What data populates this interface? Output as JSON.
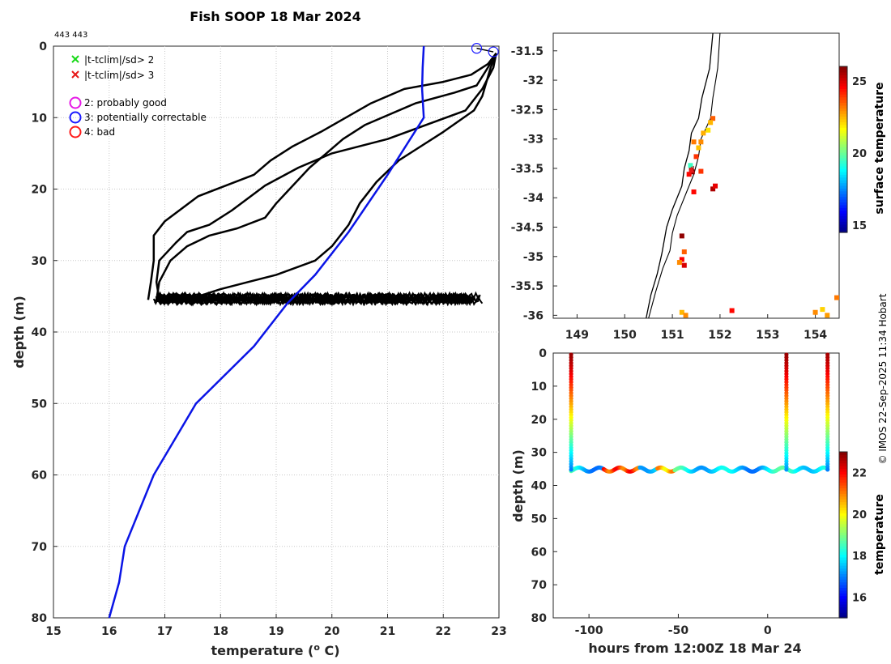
{
  "header_code": "443 443",
  "credit": "© IMOS 22-Sep-2025 11:34 Hobart",
  "colors": {
    "profile": "#000000",
    "climatology": "#0a14e6",
    "flag2": "#e619e6",
    "flag3": "#1a1aff",
    "flag4": "#ff1a1a",
    "xg": "#19d919",
    "xr": "#e61919"
  },
  "legend": {
    "x_green": "|t-tclim|/sd> 2",
    "x_red": "|t-tclim|/sd> 3",
    "flag2": "2: probably good",
    "flag3": "3: potentially correctable",
    "flag4": "4: bad"
  },
  "chart_data": [
    {
      "id": "profile",
      "type": "line",
      "title": "Fish SOOP 18 Mar 2024",
      "xlabel": "temperature (",
      "xlabel_sup": "o",
      "xlabel_end": " C)",
      "ylabel": "depth (m)",
      "xlim": [
        15,
        23
      ],
      "ylim": [
        0,
        80
      ],
      "xticks": [
        15,
        16,
        17,
        18,
        19,
        20,
        21,
        22,
        23
      ],
      "yticks": [
        0,
        10,
        20,
        30,
        40,
        50,
        60,
        70,
        80
      ],
      "grid": true,
      "climatology": {
        "name": "climatology",
        "points": [
          [
            21.65,
            0
          ],
          [
            21.63,
            3
          ],
          [
            21.62,
            6
          ],
          [
            21.65,
            10
          ],
          [
            21.0,
            18
          ],
          [
            20.3,
            26
          ],
          [
            19.7,
            32
          ],
          [
            19.2,
            36
          ],
          [
            18.6,
            42
          ],
          [
            17.56,
            50
          ],
          [
            16.8,
            60
          ],
          [
            16.28,
            70
          ],
          [
            16.18,
            75
          ],
          [
            16.0,
            80
          ]
        ]
      },
      "profiles": [
        {
          "name": "cast 1",
          "points": [
            [
              22.95,
              1
            ],
            [
              22.9,
              3
            ],
            [
              22.7,
              6
            ],
            [
              22.4,
              9
            ],
            [
              21.0,
              13
            ],
            [
              20.0,
              15
            ],
            [
              19.4,
              17
            ],
            [
              18.8,
              19.5
            ],
            [
              18.2,
              23
            ],
            [
              17.8,
              25
            ],
            [
              17.4,
              26
            ],
            [
              17.2,
              27.5
            ],
            [
              16.9,
              30
            ],
            [
              16.85,
              33
            ],
            [
              16.9,
              35.5
            ]
          ]
        },
        {
          "name": "cast 2",
          "points": [
            [
              22.95,
              1
            ],
            [
              22.8,
              2.5
            ],
            [
              22.5,
              4
            ],
            [
              22.0,
              5
            ],
            [
              21.3,
              6
            ],
            [
              20.7,
              8
            ],
            [
              19.8,
              12
            ],
            [
              19.3,
              14
            ],
            [
              18.9,
              16
            ],
            [
              18.6,
              18
            ],
            [
              18.1,
              19.5
            ],
            [
              17.6,
              21
            ],
            [
              17.0,
              24.5
            ],
            [
              16.8,
              26.5
            ],
            [
              16.8,
              30
            ],
            [
              16.75,
              33
            ],
            [
              16.7,
              35.5
            ]
          ]
        },
        {
          "name": "cast 3",
          "points": [
            [
              22.95,
              1
            ],
            [
              22.8,
              3
            ],
            [
              22.6,
              5.5
            ],
            [
              22.2,
              6.5
            ],
            [
              21.5,
              8
            ],
            [
              20.6,
              11
            ],
            [
              20.2,
              13
            ],
            [
              19.9,
              15
            ],
            [
              19.6,
              17
            ],
            [
              19.3,
              19.5
            ],
            [
              19.0,
              22
            ],
            [
              18.8,
              24
            ],
            [
              18.3,
              25.5
            ],
            [
              17.8,
              26.5
            ],
            [
              17.4,
              28
            ],
            [
              17.1,
              30
            ],
            [
              16.9,
              33
            ],
            [
              16.85,
              35.5
            ]
          ]
        },
        {
          "name": "cast 4",
          "points": [
            [
              22.95,
              1
            ],
            [
              22.85,
              3
            ],
            [
              22.7,
              7
            ],
            [
              22.55,
              9
            ],
            [
              22.0,
              12
            ],
            [
              21.2,
              16
            ],
            [
              20.8,
              19
            ],
            [
              20.5,
              22
            ],
            [
              20.3,
              25
            ],
            [
              20.0,
              28
            ],
            [
              19.7,
              30
            ],
            [
              19.0,
              32
            ],
            [
              18.5,
              33
            ],
            [
              18.0,
              34
            ],
            [
              17.4,
              35.5
            ]
          ]
        }
      ],
      "bottom_band": {
        "x_range": [
          16.8,
          22.7
        ],
        "depth_range": [
          34.5,
          36.2
        ]
      },
      "flag_markers": [
        {
          "flag": 3,
          "temp": 22.6,
          "depth": 0.3
        },
        {
          "flag": 3,
          "temp": 22.9,
          "depth": 0.8
        }
      ]
    },
    {
      "id": "map",
      "type": "scatter",
      "xlim": [
        148.5,
        154.5
      ],
      "ylim": [
        -36.05,
        -31.2
      ],
      "xticks": [
        149,
        150,
        151,
        152,
        153,
        154
      ],
      "yticks": [
        -31.5,
        -32,
        -32.5,
        -33,
        -33.5,
        -34,
        -34.5,
        -35,
        -35.5,
        -36
      ],
      "colorbar": {
        "label": "surface temperature",
        "range": [
          14.5,
          26
        ],
        "ticks": [
          15,
          20,
          25
        ]
      },
      "coastline": [
        [
          151.85,
          -31.2
        ],
        [
          151.78,
          -31.8
        ],
        [
          151.62,
          -32.3
        ],
        [
          151.55,
          -32.65
        ],
        [
          151.4,
          -32.9
        ],
        [
          151.35,
          -33.2
        ],
        [
          151.25,
          -33.5
        ],
        [
          151.2,
          -33.8
        ],
        [
          151.0,
          -34.2
        ],
        [
          150.88,
          -34.5
        ],
        [
          150.78,
          -34.95
        ],
        [
          150.68,
          -35.3
        ],
        [
          150.55,
          -35.65
        ],
        [
          150.45,
          -36.05
        ]
      ],
      "shelf_edge": [
        [
          152.0,
          -31.2
        ],
        [
          151.95,
          -31.8
        ],
        [
          151.85,
          -32.3
        ],
        [
          151.8,
          -32.65
        ],
        [
          151.6,
          -33.0
        ],
        [
          151.55,
          -33.3
        ],
        [
          151.45,
          -33.6
        ],
        [
          151.3,
          -33.9
        ],
        [
          151.1,
          -34.3
        ],
        [
          151.0,
          -34.6
        ],
        [
          150.95,
          -34.9
        ],
        [
          150.8,
          -35.2
        ],
        [
          150.65,
          -35.6
        ],
        [
          150.5,
          -36.05
        ]
      ],
      "sst_points": [
        {
          "lon": 151.85,
          "lat": -32.65,
          "t": 23.5
        },
        {
          "lon": 151.8,
          "lat": -32.72,
          "t": 22.5
        },
        {
          "lon": 151.75,
          "lat": -32.85,
          "t": 22.0
        },
        {
          "lon": 151.65,
          "lat": -32.9,
          "t": 22.6
        },
        {
          "lon": 151.6,
          "lat": -33.05,
          "t": 23.0
        },
        {
          "lon": 151.55,
          "lat": -33.15,
          "t": 22.4
        },
        {
          "lon": 151.45,
          "lat": -33.05,
          "t": 23.2
        },
        {
          "lon": 151.5,
          "lat": -33.3,
          "t": 24.0
        },
        {
          "lon": 151.4,
          "lat": -33.5,
          "t": 25.5
        },
        {
          "lon": 151.42,
          "lat": -33.56,
          "t": 26.0
        },
        {
          "lon": 151.35,
          "lat": -33.6,
          "t": 24.5
        },
        {
          "lon": 151.38,
          "lat": -33.45,
          "t": 19.5
        },
        {
          "lon": 151.6,
          "lat": -33.55,
          "t": 24.0
        },
        {
          "lon": 151.45,
          "lat": -33.9,
          "t": 24.5
        },
        {
          "lon": 151.85,
          "lat": -33.85,
          "t": 25.5
        },
        {
          "lon": 151.9,
          "lat": -33.8,
          "t": 24.8
        },
        {
          "lon": 151.2,
          "lat": -34.65,
          "t": 25.8
        },
        {
          "lon": 151.25,
          "lat": -34.92,
          "t": 23.5
        },
        {
          "lon": 151.2,
          "lat": -35.05,
          "t": 24.6
        },
        {
          "lon": 151.15,
          "lat": -35.1,
          "t": 23.0
        },
        {
          "lon": 151.25,
          "lat": -35.15,
          "t": 25.0
        },
        {
          "lon": 151.2,
          "lat": -35.95,
          "t": 22.5
        },
        {
          "lon": 151.28,
          "lat": -36.0,
          "t": 23.0
        },
        {
          "lon": 152.25,
          "lat": -35.92,
          "t": 24.5
        },
        {
          "lon": 154.0,
          "lat": -35.95,
          "t": 23.0
        },
        {
          "lon": 154.15,
          "lat": -35.9,
          "t": 22.2
        },
        {
          "lon": 154.25,
          "lat": -36.0,
          "t": 22.8
        },
        {
          "lon": 154.45,
          "lat": -35.7,
          "t": 23.2
        }
      ],
      "cast_location": {
        "lon": 151.4,
        "lat": -33.52
      }
    },
    {
      "id": "timeseries",
      "type": "scatter",
      "xlabel": "hours from 12:00Z 18 Mar 24",
      "ylabel": "depth (m)",
      "xlim": [
        -120,
        40
      ],
      "ylim": [
        0,
        80
      ],
      "xticks": [
        -100,
        -50,
        0
      ],
      "yticks": [
        0,
        10,
        20,
        30,
        40,
        50,
        60,
        70,
        80
      ],
      "colorbar": {
        "label": "temperature",
        "range": [
          15,
          23
        ],
        "ticks": [
          16,
          18,
          20,
          22
        ]
      },
      "casts": [
        {
          "hour": -110,
          "t_top": 22.8,
          "t_bottom": 17.0
        },
        {
          "hour": 10.5,
          "t_top": 22.8,
          "t_bottom": 17.2
        },
        {
          "hour": 33.5,
          "t_top": 22.7,
          "t_bottom": 17.0
        }
      ],
      "bottom_track": {
        "hours": [
          -110,
          33.5
        ],
        "depth_mean": 35.2,
        "depth_amp": 0.6
      },
      "warm_patches": [
        {
          "hour_from": -92,
          "hour_to": -72,
          "t": 21.5
        },
        {
          "hour_from": -62,
          "hour_to": -52,
          "t": 20.5
        }
      ]
    }
  ]
}
